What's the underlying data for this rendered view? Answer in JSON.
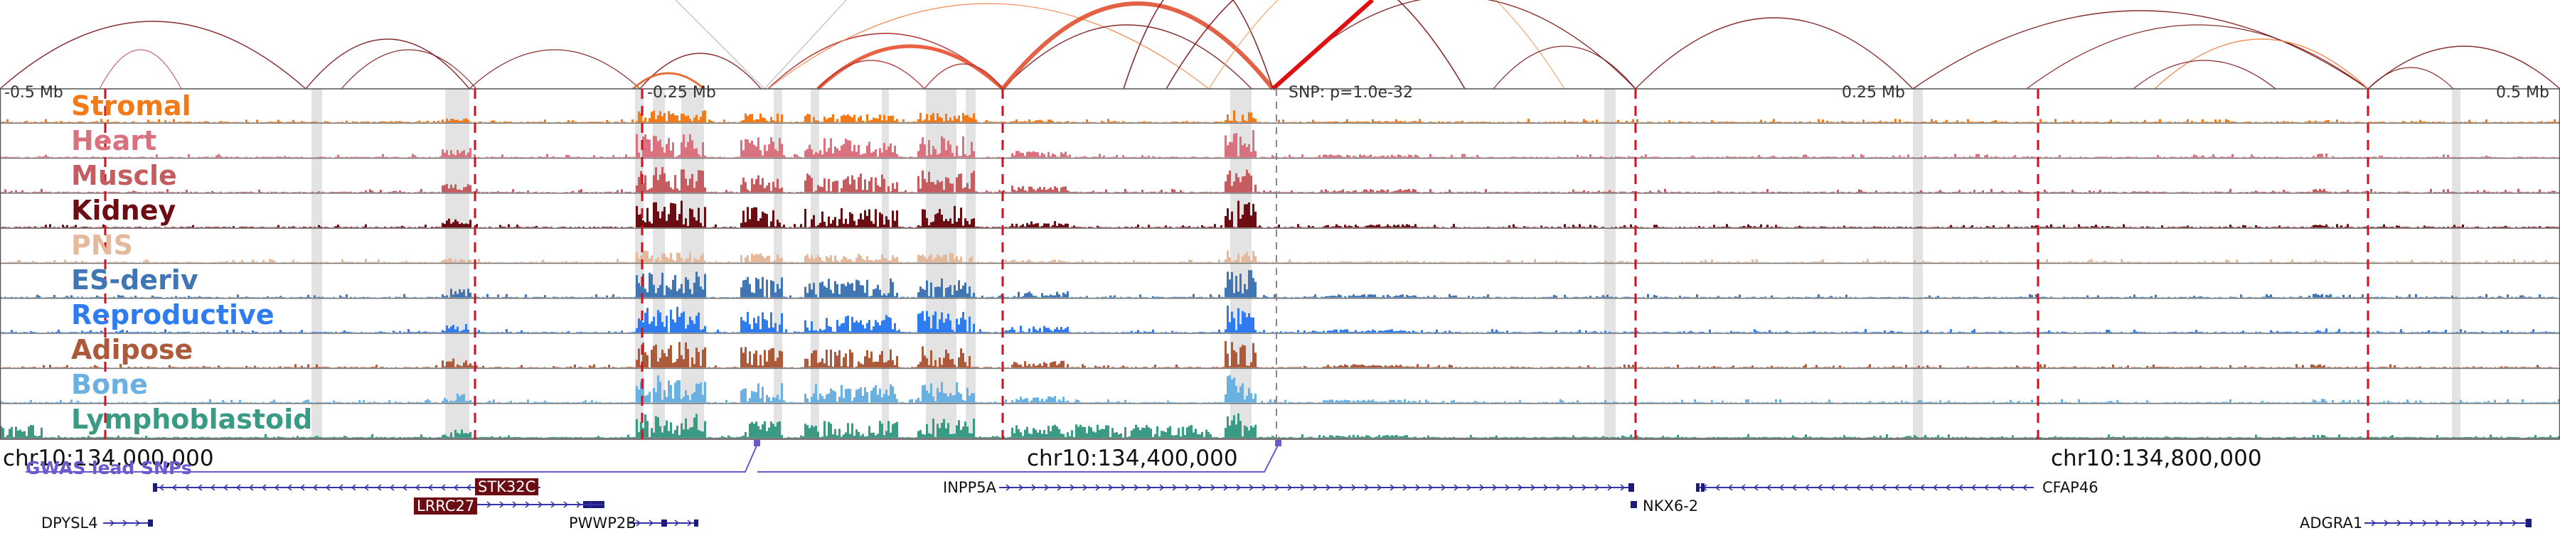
{
  "window_labels": {
    "left_far": "-0.5 Mb",
    "left_mid": "-0.25 Mb",
    "snp": "SNP: p=1.0e-32",
    "right_mid": "0.25 Mb",
    "right_far": "0.5 Mb"
  },
  "tracks": [
    {
      "name": "Stromal",
      "color": "#f47a18"
    },
    {
      "name": "Heart",
      "color": "#d9727e"
    },
    {
      "name": "Muscle",
      "color": "#c45c60"
    },
    {
      "name": "Kidney",
      "color": "#6b0d12"
    },
    {
      "name": "PNS",
      "color": "#e5b99c"
    },
    {
      "name": "ES-deriv",
      "color": "#3f76b3"
    },
    {
      "name": "Reproductive",
      "color": "#2f7cf0"
    },
    {
      "name": "Adipose",
      "color": "#ad5a3b"
    },
    {
      "name": "Bone",
      "color": "#6ab0e0"
    },
    {
      "name": "Lymphoblastoid",
      "color": "#3a9a84"
    }
  ],
  "coordinates": [
    "chr10:134,000,000",
    "chr10:134,400,000",
    "chr10:134,800,000"
  ],
  "gwas_label": "GWAS lead SNPs",
  "genes": {
    "stk32c": "STK32C",
    "lrrc27": "LRRC27",
    "dpysl4": "DPYSL4",
    "pwwp2b": "PWWP2B",
    "inpp5a": "INPP5A",
    "nkx62": "NKX6-2",
    "cfap46": "CFAP46",
    "adgra1": "ADGRA1"
  },
  "colors": {
    "gene_fill": "#1c1c7a",
    "dashed_line": "#d0101e",
    "link_arc": "#7a1515",
    "grey_band": "#d9d9d9"
  }
}
